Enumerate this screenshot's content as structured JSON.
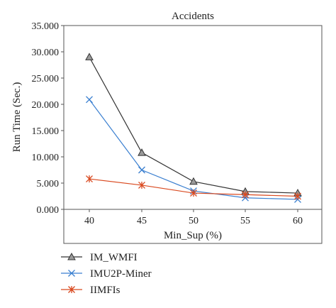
{
  "chart_data": {
    "type": "line",
    "title": "Accidents",
    "xlabel": "Min_Sup (%)",
    "ylabel": "Run Time (Sec.)",
    "categories": [
      "40",
      "45",
      "50",
      "55",
      "60"
    ],
    "ylim": [
      0,
      35000
    ],
    "yticks": [
      0,
      5000,
      10000,
      15000,
      20000,
      25000,
      30000,
      35000
    ],
    "ytick_labels": [
      "0.000",
      "5.000",
      "10.000",
      "15.000",
      "20.000",
      "25.000",
      "30.000",
      "35.000"
    ],
    "grid": false,
    "legend_position": "bottom-left",
    "series": [
      {
        "name": "IM_WMFI",
        "marker": "triangle",
        "color": "#333333",
        "values": [
          29000,
          10800,
          5300,
          3400,
          3100
        ]
      },
      {
        "name": "IMU2P-Miner",
        "marker": "x",
        "color": "#3a7fd0",
        "values": [
          20900,
          7500,
          3500,
          2200,
          1900
        ]
      },
      {
        "name": "IIMFIs",
        "marker": "star",
        "color": "#d9491f",
        "values": [
          5800,
          4600,
          3100,
          2800,
          2500
        ]
      }
    ]
  }
}
